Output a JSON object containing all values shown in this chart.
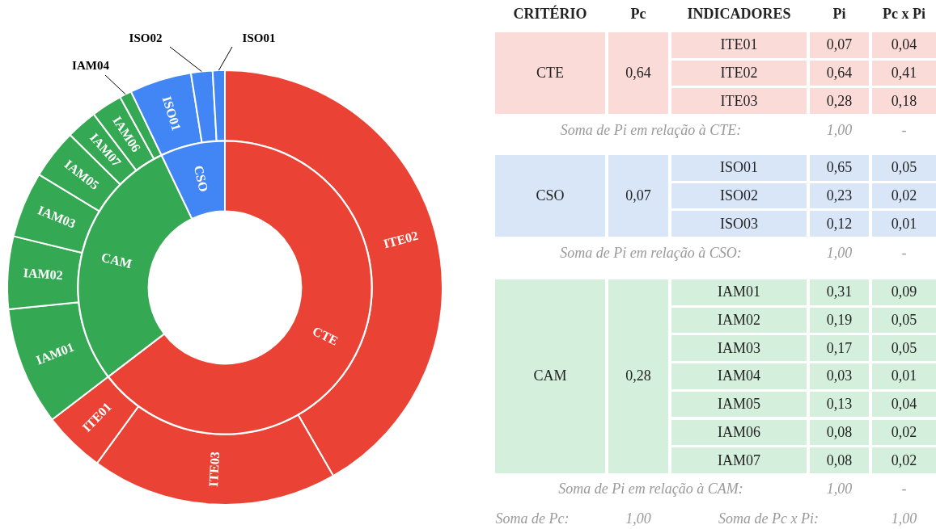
{
  "chart_data": [
    {
      "type": "donut",
      "categories": [
        "ITE02",
        "ITE03",
        "ITE01",
        "IAM01",
        "IAM02",
        "IAM03",
        "IAM05",
        "IAM07",
        "IAM06",
        "IAM04",
        "ISO01",
        "ISO02",
        "ISO01"
      ],
      "values": [
        41.7,
        18.3,
        4.6,
        8.8,
        5.4,
        4.9,
        3.7,
        2.3,
        2.3,
        0.9,
        4.6,
        1.6,
        0.9
      ],
      "colors": [
        "#ea4335",
        "#ea4335",
        "#ea4335",
        "#34a853",
        "#34a853",
        "#34a853",
        "#34a853",
        "#34a853",
        "#34a853",
        "#34a853",
        "#4285f4",
        "#4285f4",
        "#4285f4"
      ]
    },
    {
      "type": "donut",
      "categories": [
        "CTE",
        "CAM",
        "CSO"
      ],
      "values": [
        64.6,
        28.3,
        7.1
      ],
      "colors": [
        "#ea4335",
        "#34a853",
        "#4285f4"
      ]
    },
    {
      "type": "other",
      "annotations": [
        "CRITÉRIO",
        "Pc",
        "INDICADORES",
        "Pi",
        "Pc x Pi",
        "CTE",
        "0,64",
        "ITE01",
        "0,07",
        "0,04",
        "ITE02",
        "0,64",
        "0,41",
        "ITE03",
        "0,28",
        "0,18",
        "Soma de Pi em relação à CTE:",
        "1,00",
        "-",
        "CSO",
        "0,07",
        "ISO01",
        "0,65",
        "0,05",
        "ISO02",
        "0,23",
        "0,02",
        "ISO03",
        "0,12",
        "0,01",
        "Soma de Pi em relação à CSO:",
        "1,00",
        "-",
        "CAM",
        "0,28",
        "IAM01",
        "0,31",
        "0,09",
        "IAM02",
        "0,19",
        "0,05",
        "IAM03",
        "0,17",
        "0,05",
        "IAM04",
        "0,03",
        "0,01",
        "IAM05",
        "0,13",
        "0,04",
        "IAM06",
        "0,08",
        "0,02",
        "IAM07",
        "0,08",
        "0,02",
        "Soma de Pi em relação à CAM:",
        "1,00",
        "-",
        "Soma de Pc:",
        "1,00",
        "Soma de Pc x Pi:",
        "1,00"
      ]
    }
  ]
}
